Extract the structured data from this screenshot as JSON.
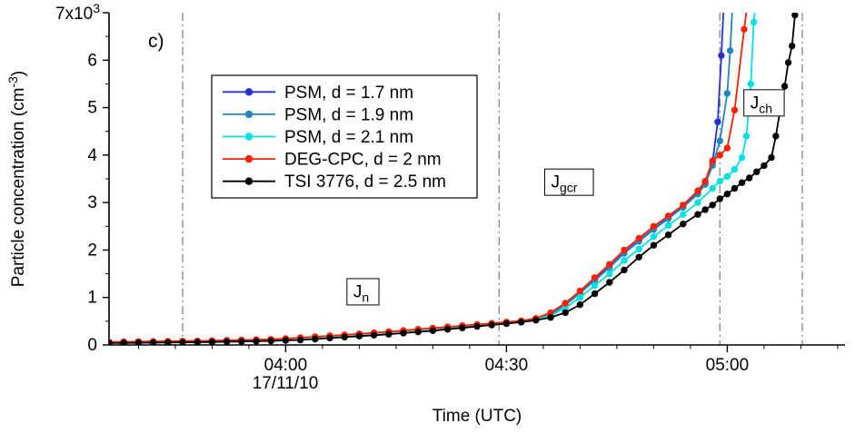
{
  "figure": {
    "panel_label": "c)",
    "x_axis": {
      "title": "Time (UTC)",
      "date_label": "17/11/10"
    },
    "y_axis": {
      "title_parts": [
        {
          "t": "Particle concentration (cm"
        },
        {
          "t": "-3",
          "sup": true
        },
        {
          "t": ")"
        }
      ],
      "top_tick_parts": [
        {
          "t": "7x10"
        },
        {
          "t": "3",
          "sup": true
        }
      ]
    },
    "colors": {
      "axis": "#000000",
      "guide": "#8c8c8c",
      "background": "#ffffff"
    }
  },
  "chart_data": {
    "type": "line",
    "title": "",
    "xlabel": "Time (UTC)",
    "ylabel": "Particle concentration (cm-3)",
    "x_unit": "minutes after 00:00 UTC on 17/11/10",
    "xlim": [
      216,
      316
    ],
    "xlim_time": [
      "03:36",
      "05:16"
    ],
    "ylim": [
      0,
      7000
    ],
    "grid": false,
    "legend_position": "top-left-inside",
    "x_ticks_major": [
      {
        "t": 240,
        "label": "04:00"
      },
      {
        "t": 270,
        "label": "04:30"
      },
      {
        "t": 300,
        "label": "05:00"
      }
    ],
    "x_ticks_minor": {
      "start": 220,
      "end": 315,
      "step": 5
    },
    "y_ticks_major": [
      {
        "v": 0,
        "label": "0"
      },
      {
        "v": 1000,
        "label": "1"
      },
      {
        "v": 2000,
        "label": "2"
      },
      {
        "v": 3000,
        "label": "3"
      },
      {
        "v": 4000,
        "label": "4"
      },
      {
        "v": 5000,
        "label": "5"
      },
      {
        "v": 6000,
        "label": "6"
      },
      {
        "v": 7000,
        "label": "",
        "use_top_parts": true
      }
    ],
    "y_ticks_minor_step": 500,
    "vertical_guides": [
      {
        "t": 226,
        "time": "03:46"
      },
      {
        "t": 269,
        "time": "04:29"
      },
      {
        "t": 299,
        "time": "04:59"
      },
      {
        "t": 310.2,
        "time": "05:10"
      }
    ],
    "annotations": [
      {
        "main": "J",
        "sub": "n",
        "t": 250.5,
        "v": 1120
      },
      {
        "main": "J",
        "sub": "gcr",
        "t": 278.5,
        "v": 3430
      },
      {
        "main": "J",
        "sub": "ch",
        "t": 305.0,
        "v": 5100
      }
    ],
    "series": [
      {
        "name": "PSM, d = 1.7 nm",
        "color": "#2431d6",
        "marker": "circle",
        "points": [
          [
            216,
            60
          ],
          [
            218,
            65
          ],
          [
            220,
            68
          ],
          [
            222,
            70
          ],
          [
            224,
            74
          ],
          [
            226,
            78
          ],
          [
            228,
            82
          ],
          [
            230,
            88
          ],
          [
            232,
            95
          ],
          [
            234,
            100
          ],
          [
            236,
            108
          ],
          [
            238,
            115
          ],
          [
            240,
            130
          ],
          [
            242,
            150
          ],
          [
            244,
            170
          ],
          [
            246,
            190
          ],
          [
            248,
            210
          ],
          [
            250,
            230
          ],
          [
            252,
            252
          ],
          [
            254,
            275
          ],
          [
            256,
            300
          ],
          [
            258,
            325
          ],
          [
            260,
            350
          ],
          [
            262,
            375
          ],
          [
            264,
            400
          ],
          [
            266,
            425
          ],
          [
            268,
            450
          ],
          [
            270,
            478
          ],
          [
            272,
            505
          ],
          [
            274,
            550
          ],
          [
            276,
            650
          ],
          [
            278,
            850
          ],
          [
            280,
            1100
          ],
          [
            282,
            1380
          ],
          [
            284,
            1650
          ],
          [
            286,
            1950
          ],
          [
            288,
            2200
          ],
          [
            290,
            2450
          ],
          [
            292,
            2680
          ],
          [
            294,
            2920
          ],
          [
            296,
            3200
          ],
          [
            297,
            3400
          ],
          [
            298,
            3850
          ],
          [
            298.7,
            4700
          ],
          [
            299.2,
            6100
          ],
          [
            299.6,
            7400
          ]
        ]
      },
      {
        "name": "PSM, d = 1.9 nm",
        "color": "#1f86c2",
        "marker": "circle",
        "points": [
          [
            216,
            55
          ],
          [
            218,
            60
          ],
          [
            220,
            64
          ],
          [
            222,
            66
          ],
          [
            224,
            70
          ],
          [
            226,
            74
          ],
          [
            228,
            78
          ],
          [
            230,
            84
          ],
          [
            232,
            90
          ],
          [
            234,
            96
          ],
          [
            236,
            104
          ],
          [
            238,
            112
          ],
          [
            240,
            126
          ],
          [
            242,
            146
          ],
          [
            244,
            166
          ],
          [
            246,
            186
          ],
          [
            248,
            206
          ],
          [
            250,
            226
          ],
          [
            252,
            248
          ],
          [
            254,
            270
          ],
          [
            256,
            295
          ],
          [
            258,
            320
          ],
          [
            260,
            345
          ],
          [
            262,
            370
          ],
          [
            264,
            395
          ],
          [
            266,
            420
          ],
          [
            268,
            445
          ],
          [
            270,
            472
          ],
          [
            272,
            500
          ],
          [
            274,
            545
          ],
          [
            276,
            640
          ],
          [
            278,
            840
          ],
          [
            280,
            1090
          ],
          [
            282,
            1360
          ],
          [
            284,
            1630
          ],
          [
            286,
            1930
          ],
          [
            288,
            2180
          ],
          [
            290,
            2430
          ],
          [
            292,
            2660
          ],
          [
            294,
            2900
          ],
          [
            296,
            3180
          ],
          [
            297,
            3380
          ],
          [
            298,
            3780
          ],
          [
            299,
            4300
          ],
          [
            300,
            5300
          ],
          [
            300.4,
            6200
          ],
          [
            300.8,
            7400
          ]
        ]
      },
      {
        "name": "PSM, d = 2.1 nm",
        "color": "#00e1e1",
        "marker": "circle",
        "points": [
          [
            216,
            58
          ],
          [
            218,
            62
          ],
          [
            220,
            66
          ],
          [
            222,
            69
          ],
          [
            224,
            72
          ],
          [
            226,
            76
          ],
          [
            228,
            80
          ],
          [
            230,
            86
          ],
          [
            232,
            92
          ],
          [
            234,
            98
          ],
          [
            236,
            106
          ],
          [
            238,
            114
          ],
          [
            240,
            128
          ],
          [
            242,
            148
          ],
          [
            244,
            168
          ],
          [
            246,
            188
          ],
          [
            248,
            208
          ],
          [
            250,
            228
          ],
          [
            252,
            250
          ],
          [
            254,
            272
          ],
          [
            256,
            298
          ],
          [
            258,
            322
          ],
          [
            260,
            348
          ],
          [
            262,
            372
          ],
          [
            264,
            398
          ],
          [
            266,
            422
          ],
          [
            268,
            448
          ],
          [
            270,
            475
          ],
          [
            272,
            502
          ],
          [
            274,
            540
          ],
          [
            276,
            620
          ],
          [
            278,
            780
          ],
          [
            280,
            1000
          ],
          [
            282,
            1250
          ],
          [
            284,
            1500
          ],
          [
            286,
            1780
          ],
          [
            288,
            2020
          ],
          [
            290,
            2280
          ],
          [
            292,
            2520
          ],
          [
            294,
            2750
          ],
          [
            296,
            3000
          ],
          [
            298,
            3300
          ],
          [
            299,
            3450
          ],
          [
            300,
            3550
          ],
          [
            301,
            3700
          ],
          [
            302,
            3950
          ],
          [
            302.6,
            4400
          ],
          [
            303.2,
            5500
          ],
          [
            303.6,
            6800
          ],
          [
            304,
            7400
          ]
        ]
      },
      {
        "name": "DEG-CPC, d = 2 nm",
        "color": "#ff2000",
        "marker": "circle",
        "points": [
          [
            216,
            62
          ],
          [
            218,
            66
          ],
          [
            220,
            70
          ],
          [
            222,
            73
          ],
          [
            224,
            76
          ],
          [
            226,
            80
          ],
          [
            228,
            85
          ],
          [
            230,
            90
          ],
          [
            232,
            97
          ],
          [
            234,
            103
          ],
          [
            236,
            110
          ],
          [
            238,
            118
          ],
          [
            240,
            133
          ],
          [
            242,
            153
          ],
          [
            244,
            173
          ],
          [
            246,
            193
          ],
          [
            248,
            213
          ],
          [
            250,
            233
          ],
          [
            252,
            256
          ],
          [
            254,
            280
          ],
          [
            256,
            305
          ],
          [
            258,
            330
          ],
          [
            260,
            355
          ],
          [
            262,
            380
          ],
          [
            264,
            405
          ],
          [
            266,
            430
          ],
          [
            268,
            455
          ],
          [
            270,
            482
          ],
          [
            272,
            508
          ],
          [
            274,
            560
          ],
          [
            276,
            680
          ],
          [
            278,
            880
          ],
          [
            280,
            1140
          ],
          [
            282,
            1420
          ],
          [
            284,
            1700
          ],
          [
            286,
            2000
          ],
          [
            288,
            2250
          ],
          [
            290,
            2500
          ],
          [
            292,
            2720
          ],
          [
            294,
            2950
          ],
          [
            296,
            3250
          ],
          [
            297,
            3450
          ],
          [
            298,
            3880
          ],
          [
            299,
            4000
          ],
          [
            300,
            4150
          ],
          [
            301,
            4950
          ],
          [
            302.3,
            6650
          ],
          [
            302.9,
            7400
          ]
        ]
      },
      {
        "name": "TSI 3776, d = 2.5 nm",
        "color": "#000000",
        "marker": "circle",
        "points": [
          [
            216,
            40
          ],
          [
            218,
            42
          ],
          [
            220,
            45
          ],
          [
            222,
            47
          ],
          [
            224,
            50
          ],
          [
            226,
            55
          ],
          [
            228,
            58
          ],
          [
            230,
            62
          ],
          [
            232,
            66
          ],
          [
            234,
            72
          ],
          [
            236,
            78
          ],
          [
            238,
            85
          ],
          [
            240,
            95
          ],
          [
            242,
            105
          ],
          [
            244,
            125
          ],
          [
            246,
            145
          ],
          [
            248,
            165
          ],
          [
            250,
            185
          ],
          [
            252,
            205
          ],
          [
            254,
            225
          ],
          [
            256,
            250
          ],
          [
            258,
            275
          ],
          [
            260,
            300
          ],
          [
            262,
            330
          ],
          [
            264,
            360
          ],
          [
            266,
            390
          ],
          [
            268,
            420
          ],
          [
            270,
            450
          ],
          [
            272,
            480
          ],
          [
            274,
            520
          ],
          [
            276,
            580
          ],
          [
            278,
            680
          ],
          [
            280,
            850
          ],
          [
            282,
            1080
          ],
          [
            284,
            1320
          ],
          [
            286,
            1580
          ],
          [
            288,
            1850
          ],
          [
            290,
            2100
          ],
          [
            292,
            2320
          ],
          [
            294,
            2550
          ],
          [
            296,
            2750
          ],
          [
            297,
            2850
          ],
          [
            298,
            2950
          ],
          [
            299,
            3080
          ],
          [
            300,
            3180
          ],
          [
            301,
            3300
          ],
          [
            302,
            3420
          ],
          [
            303,
            3520
          ],
          [
            304,
            3650
          ],
          [
            305,
            3780
          ],
          [
            306,
            3950
          ],
          [
            306.6,
            4400
          ],
          [
            307.2,
            4950
          ],
          [
            307.8,
            5450
          ],
          [
            308.3,
            5950
          ],
          [
            308.8,
            6300
          ],
          [
            309.2,
            6950
          ],
          [
            309.6,
            7400
          ]
        ]
      }
    ]
  }
}
